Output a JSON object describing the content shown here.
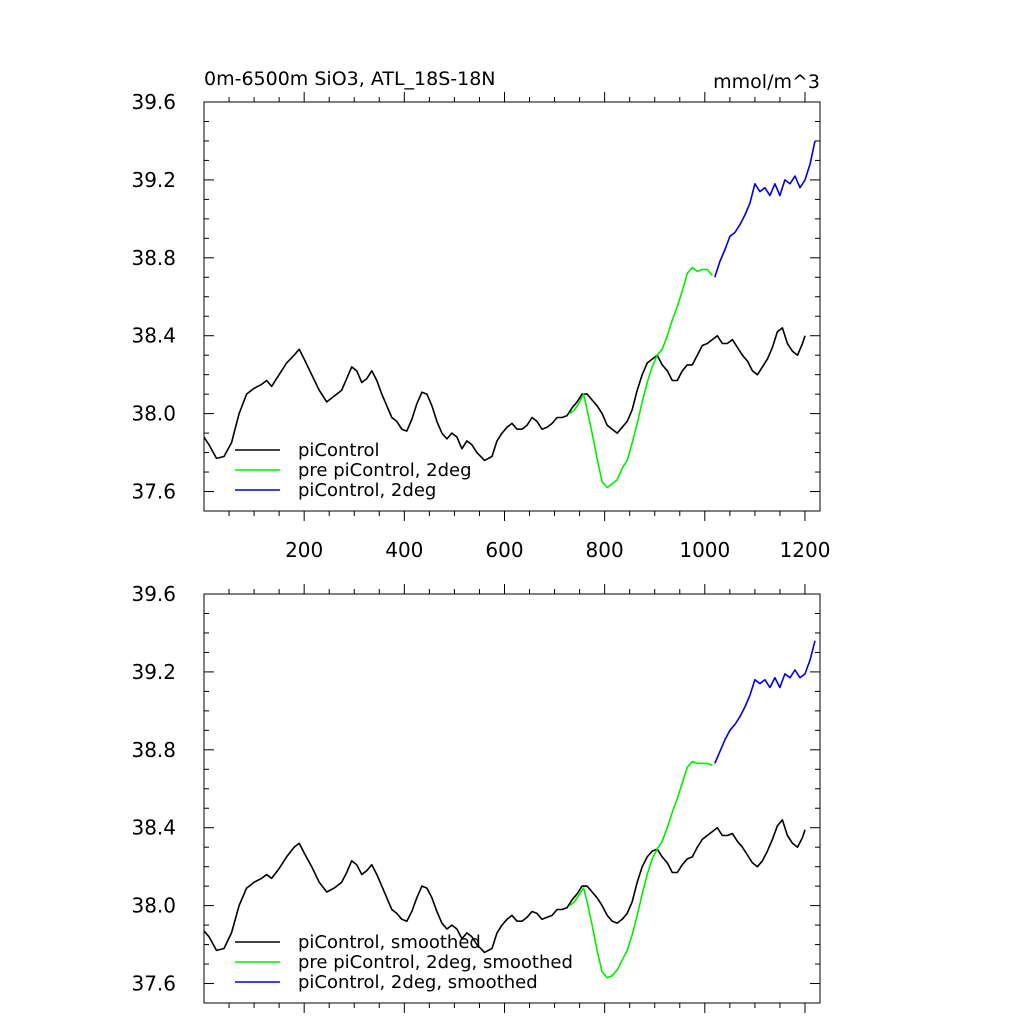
{
  "header": {
    "title": "0m-6500m SiO3, ATL_18S-18N",
    "units": "mmol/m^3"
  },
  "colors": {
    "piControl": "#000000",
    "pre_piControl_2deg": "#00ee00",
    "piControl_2deg": "#0000dd"
  },
  "chart_data": [
    {
      "type": "line",
      "title": "0m-6500m SiO3, ATL_18S-18N",
      "units": "mmol/m^3",
      "xlim": [
        0,
        1230
      ],
      "ylim": [
        37.5,
        39.6
      ],
      "x_ticks": [
        200,
        400,
        600,
        800,
        1000,
        1200
      ],
      "y_ticks": [
        37.6,
        38.0,
        38.4,
        38.8,
        39.2,
        39.6
      ],
      "y_tick_labels": [
        "37.6",
        "38.0",
        "38.4",
        "38.8",
        "39.2",
        "39.6"
      ],
      "x_tick_labels": [
        "200",
        "400",
        "600",
        "800",
        "1000",
        "1200"
      ],
      "show_x_tick_labels": true,
      "grid": false,
      "legend_position": "bottom-left",
      "series": [
        {
          "name": "piControl",
          "color": "#000000",
          "x": [
            0,
            10,
            25,
            40,
            55,
            70,
            85,
            100,
            115,
            125,
            135,
            150,
            165,
            180,
            190,
            200,
            215,
            230,
            245,
            260,
            275,
            285,
            295,
            305,
            315,
            325,
            335,
            345,
            355,
            365,
            375,
            385,
            395,
            405,
            415,
            425,
            435,
            445,
            455,
            465,
            475,
            485,
            495,
            505,
            515,
            525,
            535,
            545,
            560,
            575,
            585,
            595,
            605,
            615,
            625,
            635,
            645,
            655,
            665,
            675,
            685,
            695,
            705,
            715,
            725,
            735,
            745,
            755,
            765,
            775,
            785,
            795,
            805,
            815,
            825,
            835,
            845,
            855,
            865,
            875,
            885,
            895,
            905,
            915,
            925,
            935,
            945,
            955,
            965,
            975,
            985,
            995,
            1005,
            1015,
            1025,
            1035,
            1045,
            1055,
            1065,
            1075,
            1085,
            1095,
            1105,
            1115,
            1125,
            1135,
            1145,
            1155,
            1165,
            1175,
            1185,
            1195,
            1200
          ],
          "y": [
            37.88,
            37.84,
            37.77,
            37.78,
            37.85,
            38.0,
            38.1,
            38.13,
            38.15,
            38.17,
            38.14,
            38.2,
            38.26,
            38.3,
            38.33,
            38.28,
            38.2,
            38.12,
            38.06,
            38.09,
            38.12,
            38.18,
            38.24,
            38.22,
            38.16,
            38.18,
            38.22,
            38.17,
            38.1,
            38.04,
            37.98,
            37.96,
            37.92,
            37.91,
            37.97,
            38.05,
            38.11,
            38.1,
            38.04,
            37.96,
            37.9,
            37.87,
            37.9,
            37.88,
            37.82,
            37.86,
            37.84,
            37.8,
            37.76,
            37.78,
            37.86,
            37.9,
            37.93,
            37.95,
            37.92,
            37.92,
            37.94,
            37.98,
            37.96,
            37.92,
            37.93,
            37.95,
            37.98,
            37.98,
            37.99,
            38.03,
            38.06,
            38.1,
            38.1,
            38.07,
            38.04,
            38.0,
            37.94,
            37.92,
            37.9,
            37.93,
            37.96,
            38.02,
            38.12,
            38.2,
            38.26,
            38.28,
            38.3,
            38.25,
            38.22,
            38.17,
            38.17,
            38.22,
            38.25,
            38.25,
            38.3,
            38.35,
            38.36,
            38.38,
            38.4,
            38.36,
            38.36,
            38.38,
            38.34,
            38.3,
            38.27,
            38.22,
            38.2,
            38.24,
            38.28,
            38.34,
            38.42,
            38.44,
            38.36,
            38.32,
            38.3,
            38.36,
            38.4
          ]
        },
        {
          "name": "pre piControl, 2deg",
          "color": "#00ee00",
          "x": [
            730,
            740,
            750,
            758,
            765,
            775,
            785,
            795,
            805,
            815,
            825,
            835,
            845,
            855,
            865,
            875,
            885,
            895,
            905,
            915,
            925,
            935,
            945,
            955,
            965,
            975,
            985,
            995,
            1005,
            1015
          ],
          "y": [
            38.0,
            38.02,
            38.06,
            38.1,
            38.02,
            37.9,
            37.77,
            37.65,
            37.62,
            37.64,
            37.66,
            37.72,
            37.76,
            37.85,
            37.95,
            38.06,
            38.16,
            38.24,
            38.3,
            38.33,
            38.4,
            38.48,
            38.55,
            38.63,
            38.72,
            38.75,
            38.73,
            38.74,
            38.74,
            38.71
          ]
        },
        {
          "name": "piControl, 2deg",
          "color": "#0000dd",
          "x": [
            1020,
            1030,
            1040,
            1050,
            1060,
            1070,
            1080,
            1090,
            1100,
            1110,
            1120,
            1130,
            1140,
            1150,
            1160,
            1170,
            1180,
            1190,
            1200,
            1210,
            1220
          ],
          "y": [
            38.7,
            38.78,
            38.84,
            38.91,
            38.93,
            38.97,
            39.02,
            39.08,
            39.18,
            39.14,
            39.16,
            39.12,
            39.18,
            39.12,
            39.2,
            39.18,
            39.22,
            39.16,
            39.2,
            39.28,
            39.4
          ]
        }
      ]
    },
    {
      "type": "line",
      "title": "",
      "xlim": [
        0,
        1230
      ],
      "ylim": [
        37.5,
        39.6
      ],
      "x_ticks": [
        200,
        400,
        600,
        800,
        1000,
        1200
      ],
      "y_ticks": [
        37.6,
        38.0,
        38.4,
        38.8,
        39.2,
        39.6
      ],
      "y_tick_labels": [
        "37.6",
        "38.0",
        "38.4",
        "38.8",
        "39.2",
        "39.6"
      ],
      "x_tick_labels": [],
      "show_x_tick_labels": false,
      "grid": false,
      "legend_position": "bottom-left",
      "series": [
        {
          "name": "piControl, smoothed",
          "color": "#000000",
          "x": [
            0,
            10,
            25,
            40,
            55,
            70,
            85,
            100,
            115,
            125,
            135,
            150,
            165,
            180,
            190,
            200,
            215,
            230,
            245,
            260,
            275,
            285,
            295,
            305,
            315,
            325,
            335,
            345,
            355,
            365,
            375,
            385,
            395,
            405,
            415,
            425,
            435,
            445,
            455,
            465,
            475,
            485,
            495,
            505,
            515,
            525,
            535,
            545,
            560,
            575,
            585,
            595,
            605,
            615,
            625,
            635,
            645,
            655,
            665,
            675,
            685,
            695,
            705,
            715,
            725,
            735,
            745,
            755,
            765,
            775,
            785,
            795,
            805,
            815,
            825,
            835,
            845,
            855,
            865,
            875,
            885,
            895,
            905,
            915,
            925,
            935,
            945,
            955,
            965,
            975,
            985,
            995,
            1005,
            1015,
            1025,
            1035,
            1045,
            1055,
            1065,
            1075,
            1085,
            1095,
            1105,
            1115,
            1125,
            1135,
            1145,
            1155,
            1165,
            1175,
            1185,
            1195,
            1200
          ],
          "y": [
            37.87,
            37.84,
            37.77,
            37.78,
            37.86,
            38.0,
            38.09,
            38.12,
            38.14,
            38.16,
            38.14,
            38.19,
            38.25,
            38.3,
            38.32,
            38.27,
            38.2,
            38.12,
            38.07,
            38.09,
            38.12,
            38.17,
            38.23,
            38.21,
            38.16,
            38.18,
            38.21,
            38.16,
            38.1,
            38.04,
            37.98,
            37.96,
            37.93,
            37.92,
            37.97,
            38.04,
            38.1,
            38.09,
            38.04,
            37.97,
            37.91,
            37.88,
            37.9,
            37.88,
            37.83,
            37.86,
            37.84,
            37.8,
            37.76,
            37.78,
            37.86,
            37.9,
            37.93,
            37.95,
            37.92,
            37.92,
            37.94,
            37.97,
            37.96,
            37.93,
            37.94,
            37.95,
            37.98,
            37.98,
            37.99,
            38.03,
            38.06,
            38.1,
            38.1,
            38.07,
            38.04,
            38.0,
            37.95,
            37.92,
            37.91,
            37.93,
            37.96,
            38.02,
            38.12,
            38.2,
            38.25,
            38.28,
            38.29,
            38.25,
            38.22,
            38.17,
            38.17,
            38.21,
            38.24,
            38.25,
            38.3,
            38.34,
            38.36,
            38.38,
            38.4,
            38.36,
            38.36,
            38.37,
            38.33,
            38.3,
            38.26,
            38.22,
            38.2,
            38.23,
            38.28,
            38.34,
            38.41,
            38.44,
            38.36,
            38.32,
            38.3,
            38.35,
            38.39
          ]
        },
        {
          "name": "pre piControl, 2deg, smoothed",
          "color": "#00ee00",
          "x": [
            730,
            740,
            750,
            758,
            765,
            775,
            785,
            795,
            805,
            815,
            825,
            835,
            845,
            855,
            865,
            875,
            885,
            895,
            905,
            915,
            925,
            935,
            945,
            955,
            965,
            975,
            985,
            995,
            1005,
            1015
          ],
          "y": [
            38.0,
            38.02,
            38.06,
            38.09,
            38.02,
            37.9,
            37.77,
            37.66,
            37.63,
            37.64,
            37.67,
            37.72,
            37.77,
            37.85,
            37.95,
            38.06,
            38.16,
            38.24,
            38.29,
            38.33,
            38.4,
            38.48,
            38.55,
            38.63,
            38.71,
            38.74,
            38.73,
            38.73,
            38.73,
            38.72
          ]
        },
        {
          "name": "piControl, 2deg, smoothed",
          "color": "#0000dd",
          "x": [
            1020,
            1030,
            1040,
            1050,
            1060,
            1070,
            1080,
            1090,
            1100,
            1110,
            1120,
            1130,
            1140,
            1150,
            1160,
            1170,
            1180,
            1190,
            1200,
            1210,
            1220
          ],
          "y": [
            38.73,
            38.79,
            38.85,
            38.9,
            38.93,
            38.97,
            39.02,
            39.08,
            39.16,
            39.14,
            39.16,
            39.12,
            39.17,
            39.12,
            39.19,
            39.17,
            39.21,
            39.17,
            39.19,
            39.26,
            39.36
          ]
        }
      ]
    }
  ]
}
